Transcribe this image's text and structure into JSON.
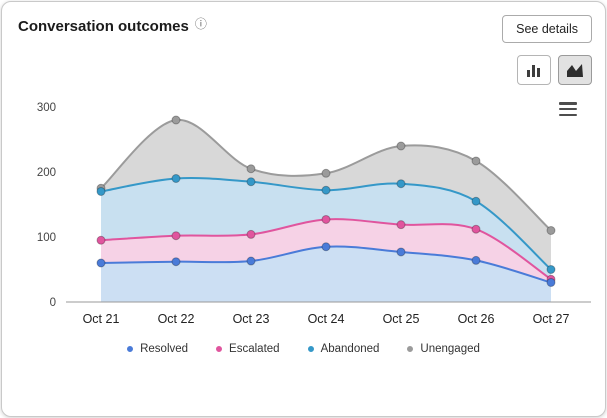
{
  "card": {
    "title": "Conversation outcomes",
    "info_icon_glyph": "ⓘ",
    "see_details_label": "See details",
    "toolbar": {
      "buttons": [
        {
          "icon": "column-chart",
          "active": false
        },
        {
          "icon": "area-chart",
          "active": true
        }
      ]
    }
  },
  "chart_data": {
    "type": "area",
    "title": "Conversation outcomes",
    "x": [
      "Oct 21",
      "Oct 22",
      "Oct 23",
      "Oct 24",
      "Oct 25",
      "Oct 26",
      "Oct 27"
    ],
    "series": [
      {
        "name": "Resolved",
        "color": "#4a7bd8",
        "fill": "#ccdff3",
        "values": [
          60,
          62,
          63,
          85,
          77,
          64,
          30
        ]
      },
      {
        "name": "Escalated",
        "color": "#e0559e",
        "fill": "#f6d2e6",
        "values": [
          95,
          102,
          104,
          127,
          119,
          112,
          35
        ]
      },
      {
        "name": "Abandoned",
        "color": "#3598c8",
        "fill": "#c8e0f0",
        "values": [
          170,
          190,
          185,
          172,
          182,
          155,
          50
        ]
      },
      {
        "name": "Unengaged",
        "color": "#9b9b9b",
        "fill": "#d8d8d8",
        "values": [
          175,
          280,
          205,
          198,
          240,
          217,
          110
        ]
      }
    ],
    "ylim": [
      0,
      300
    ],
    "yticks": [
      0,
      100,
      200,
      300
    ],
    "xlabel": "",
    "ylabel": "",
    "grid": false,
    "legend_position": "bottom"
  }
}
